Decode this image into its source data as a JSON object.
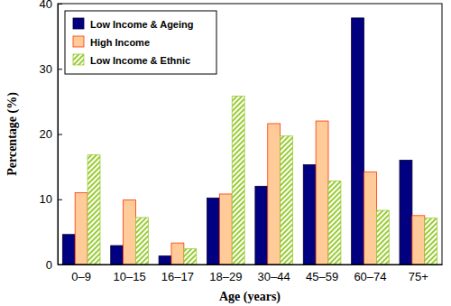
{
  "chart_data": {
    "type": "bar",
    "x_label": "Age (years)",
    "y_label": "Percentage (%)",
    "categories": [
      "0–9",
      "10–15",
      "16–17",
      "18–29",
      "30–44",
      "45–59",
      "60–74",
      "75+"
    ],
    "series": [
      {
        "name": "Low Income & Ageing",
        "color": "#000080",
        "values": [
          4.6,
          2.9,
          1.3,
          10.2,
          12.0,
          15.3,
          37.8,
          16.0
        ]
      },
      {
        "name": "High Income",
        "color": "#ffcc99",
        "values": [
          11.0,
          9.9,
          3.3,
          10.8,
          21.6,
          22.0,
          14.2,
          7.5
        ]
      },
      {
        "name": "Low Income & Ethnic",
        "color": "#99cc33",
        "values": [
          16.8,
          7.2,
          2.4,
          25.8,
          19.7,
          12.8,
          8.3,
          7.1
        ]
      }
    ],
    "ylim": [
      0,
      40
    ],
    "yticks": [
      0,
      10,
      20,
      30,
      40
    ],
    "grid": false,
    "legend": "top-left"
  }
}
